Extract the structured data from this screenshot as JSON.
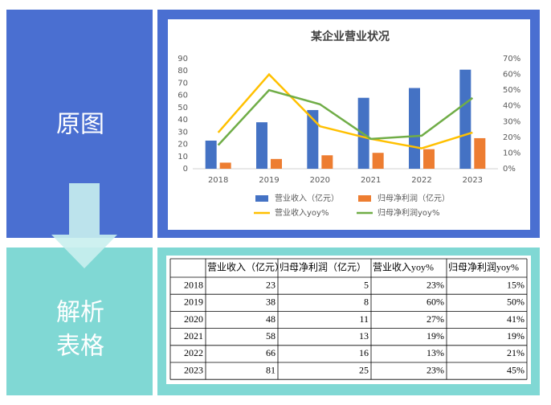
{
  "labels": {
    "original": "原图",
    "parsed": [
      "解析",
      "表格"
    ]
  },
  "chart_data": {
    "type": "combo",
    "title": "某企业营业状况",
    "categories": [
      "2018",
      "2019",
      "2020",
      "2021",
      "2022",
      "2023"
    ],
    "series": [
      {
        "name": "营业收入（亿元）",
        "type": "bar",
        "color": "#4472c4",
        "values": [
          23,
          38,
          48,
          58,
          66,
          81
        ]
      },
      {
        "name": "归母净利润（亿元）",
        "type": "bar",
        "color": "#ed7d31",
        "values": [
          5,
          8,
          11,
          13,
          16,
          25
        ]
      },
      {
        "name": "营业收入yoy%",
        "type": "line",
        "axis": "y2",
        "color": "#ffc000",
        "values": [
          23,
          60,
          27,
          19,
          13,
          23
        ]
      },
      {
        "name": "归母净利润yoy%",
        "type": "line",
        "axis": "y2",
        "color": "#70ad47",
        "values": [
          15,
          50,
          41,
          19,
          21,
          45
        ]
      }
    ],
    "ylim": [
      0,
      90
    ],
    "yticks": [
      0,
      10,
      20,
      30,
      40,
      50,
      60,
      70,
      80,
      90
    ],
    "y2lim": [
      0,
      70
    ],
    "y2ticks": [
      {
        "value": 0,
        "label": "0%"
      },
      {
        "value": 10,
        "label": "10%"
      },
      {
        "value": 20,
        "label": "20%"
      },
      {
        "value": 30,
        "label": "30%"
      },
      {
        "value": 40,
        "label": "40%"
      },
      {
        "value": 50,
        "label": "50%"
      },
      {
        "value": 60,
        "label": "60%"
      },
      {
        "value": 70,
        "label": "70%"
      }
    ],
    "grid": false
  },
  "table": {
    "columns": [
      "营业收入（亿元）",
      "归母净利润（亿元）",
      "营业收入yoy%",
      "归母净利润yoy%"
    ],
    "rows": [
      [
        "2018",
        "23",
        "5",
        "23%",
        "15%"
      ],
      [
        "2019",
        "38",
        "8",
        "60%",
        "50%"
      ],
      [
        "2020",
        "48",
        "11",
        "27%",
        "41%"
      ],
      [
        "2021",
        "58",
        "13",
        "19%",
        "19%"
      ],
      [
        "2022",
        "66",
        "16",
        "13%",
        "21%"
      ],
      [
        "2023",
        "81",
        "25",
        "23%",
        "45%"
      ]
    ]
  }
}
